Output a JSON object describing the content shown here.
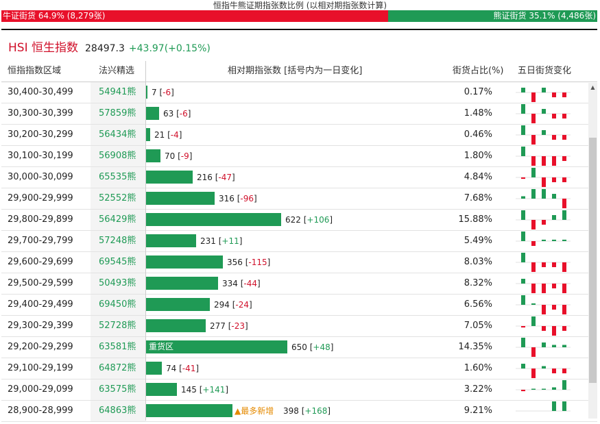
{
  "header": {
    "title": "恒指牛熊证期指张数比例 (以相对期指张数计算)",
    "bull_label": "牛证街货 64.9% (8,279张)",
    "bear_label": "熊证街货 35.1% (4,486张)",
    "bull_pct": 64.9,
    "bull_color": "#e8102a",
    "bear_color": "#1f9a55"
  },
  "index": {
    "name": "HSI 恒生指数",
    "price": "28497.3",
    "change": "+43.97(+0.15%)"
  },
  "columns": {
    "range": "恒指指数区域",
    "issuer": "法兴精选",
    "contracts": "相对期指张数 [括号内为一日变化]",
    "share": "街货占比(%)",
    "five_day": "五日街货变化"
  },
  "rows": [
    {
      "range": "30,400-30,499",
      "code": "54941熊",
      "value": 7,
      "change": "-6",
      "pct": "0.17%",
      "tag": "",
      "spark": [
        1,
        -2,
        1,
        -1,
        -1
      ]
    },
    {
      "range": "30,300-30,399",
      "code": "57859熊",
      "value": 63,
      "change": "-6",
      "pct": "1.48%",
      "tag": "",
      "spark": [
        2,
        -2,
        1,
        -1,
        -1
      ]
    },
    {
      "range": "30,200-30,299",
      "code": "56434熊",
      "value": 21,
      "change": "-4",
      "pct": "0.46%",
      "tag": "",
      "spark": [
        2,
        -2,
        1,
        -1,
        -1
      ]
    },
    {
      "range": "30,100-30,199",
      "code": "56908熊",
      "value": 70,
      "change": "-9",
      "pct": "1.80%",
      "tag": "",
      "spark": [
        2,
        -2,
        -2,
        -2,
        -1
      ]
    },
    {
      "range": "30,000-30,099",
      "code": "65535熊",
      "value": 216,
      "change": "-47",
      "pct": "4.84%",
      "tag": "",
      "spark": [
        -0.3,
        2,
        -2,
        -1,
        -1
      ]
    },
    {
      "range": "29,900-29,999",
      "code": "52552熊",
      "value": 316,
      "change": "-96",
      "pct": "7.68%",
      "tag": "",
      "spark": [
        0.5,
        2,
        2,
        1,
        -2
      ]
    },
    {
      "range": "29,800-29,899",
      "code": "56429熊",
      "value": 622,
      "change": "+106",
      "pct": "15.88%",
      "tag": "",
      "spark": [
        2,
        -2,
        -1,
        1,
        2
      ]
    },
    {
      "range": "29,700-29,799",
      "code": "57248熊",
      "value": 231,
      "change": "+11",
      "pct": "5.49%",
      "tag": "",
      "spark": [
        2,
        -1,
        0.3,
        0.3,
        0.3
      ]
    },
    {
      "range": "29,600-29,699",
      "code": "69545熊",
      "value": 356,
      "change": "-115",
      "pct": "8.03%",
      "tag": "",
      "spark": [
        2,
        -2,
        -1,
        -1,
        -2
      ]
    },
    {
      "range": "29,500-29,599",
      "code": "50493熊",
      "value": 334,
      "change": "-44",
      "pct": "8.32%",
      "tag": "",
      "spark": [
        1,
        -2,
        -2,
        -1,
        -2
      ]
    },
    {
      "range": "29,400-29,499",
      "code": "69450熊",
      "value": 294,
      "change": "-24",
      "pct": "6.56%",
      "tag": "",
      "spark": [
        2,
        0.3,
        -2,
        -1,
        -2
      ]
    },
    {
      "range": "29,300-29,399",
      "code": "52728熊",
      "value": 277,
      "change": "-23",
      "pct": "7.05%",
      "tag": "",
      "spark": [
        -0.3,
        2,
        -1,
        -2,
        -1
      ]
    },
    {
      "range": "29,200-29,299",
      "code": "63581熊",
      "value": 650,
      "change": "+48",
      "pct": "14.35%",
      "tag": "重货区",
      "spark": [
        2,
        -2,
        1,
        0.5,
        0.5
      ]
    },
    {
      "range": "29,100-29,199",
      "code": "64872熊",
      "value": 74,
      "change": "-41",
      "pct": "1.60%",
      "tag": "",
      "spark": [
        1,
        -2,
        0.5,
        -1,
        -1
      ]
    },
    {
      "range": "29,000-29,099",
      "code": "63575熊",
      "value": 145,
      "change": "+141",
      "pct": "3.22%",
      "tag": "",
      "spark": [
        -0.3,
        0.2,
        0.2,
        0.5,
        2
      ]
    },
    {
      "range": "28,900-28,999",
      "code": "64863熊",
      "value": 398,
      "change": "+168",
      "pct": "9.21%",
      "tag": "▲最多新增",
      "spark": [
        0,
        0,
        0,
        2,
        2
      ]
    }
  ]
}
